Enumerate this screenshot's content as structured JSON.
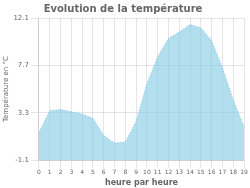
{
  "chart_data": {
    "type": "area",
    "title": "Evolution de la température",
    "xlabel": "heure par heure",
    "ylabel": "Température en °C",
    "x": [
      0,
      1,
      2,
      3,
      4,
      5,
      6,
      7,
      8,
      9,
      10,
      11,
      12,
      13,
      14,
      15,
      16,
      17,
      18,
      19
    ],
    "values": [
      1.5,
      3.5,
      3.6,
      3.4,
      3.2,
      2.8,
      1.2,
      0.5,
      0.6,
      2.5,
      6.0,
      8.5,
      10.2,
      10.8,
      11.5,
      11.2,
      10.0,
      7.5,
      4.5,
      2.0
    ],
    "color": "#7ec8e3",
    "line_style": "dotted",
    "xlim": [
      0,
      19
    ],
    "xticks": [
      0,
      1,
      2,
      3,
      4,
      5,
      6,
      7,
      8,
      9,
      10,
      11,
      12,
      13,
      14,
      15,
      16,
      17,
      18,
      19
    ],
    "ylim": [
      -1.1,
      12.1
    ],
    "yticks": [
      -1.1,
      3.3,
      7.7,
      12.1
    ],
    "grid": true
  }
}
